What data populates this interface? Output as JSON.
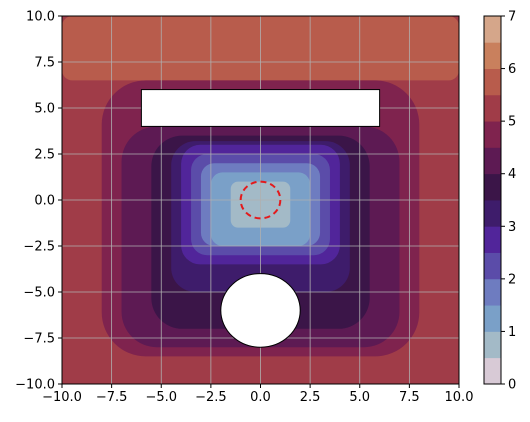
{
  "chart_data": {
    "type": "heatmap",
    "subtype": "filled-contour",
    "title": "",
    "xlabel": "",
    "ylabel": "",
    "xlim": [
      -10,
      10
    ],
    "ylim": [
      -10,
      10
    ],
    "x_ticks": [
      -10.0,
      -7.5,
      -5.0,
      -2.5,
      0.0,
      2.5,
      5.0,
      7.5,
      10.0
    ],
    "x_tick_labels": [
      "−10.0",
      "−7.5",
      "−5.0",
      "−2.5",
      "0.0",
      "2.5",
      "5.0",
      "7.5",
      "10.0"
    ],
    "y_ticks": [
      -10.0,
      -7.5,
      -5.0,
      -2.5,
      0.0,
      2.5,
      5.0,
      7.5,
      10.0
    ],
    "y_tick_labels": [
      "−10.0",
      "−7.5",
      "−5.0",
      "−2.5",
      "0.0",
      "2.5",
      "5.0",
      "7.5",
      "10.0"
    ],
    "grid": true,
    "colorbar": {
      "ticks": [
        0,
        1,
        2,
        3,
        4,
        5,
        6,
        7
      ],
      "tick_labels": [
        "0",
        "1",
        "2",
        "3",
        "4",
        "5",
        "6",
        "7"
      ],
      "levels": [
        0,
        0.5,
        1,
        1.5,
        2,
        2.5,
        3,
        3.5,
        4,
        4.5,
        5,
        5.5,
        6,
        6.5,
        7
      ],
      "colors": [
        "#d8cad6",
        "#a3bac7",
        "#7aa0c8",
        "#6e7cc0",
        "#5b4ca9",
        "#51259a",
        "#3e1c6b",
        "#3b1548",
        "#5d1a53",
        "#7f234e",
        "#a03c48",
        "#b85c4c",
        "#c9805d",
        "#d5a68a"
      ]
    },
    "field_regions": [
      {
        "level_range": [
          5,
          5.5
        ],
        "x_range": [
          -10,
          10
        ],
        "y_range": [
          -10,
          10
        ]
      },
      {
        "level_range": [
          5.5,
          6
        ],
        "x_range": [
          -10,
          10
        ],
        "y_range": [
          6.5,
          10
        ]
      },
      {
        "level_range": [
          4.5,
          5
        ],
        "x_range": [
          -8,
          8
        ],
        "y_range": [
          -8.5,
          6.5
        ]
      },
      {
        "level_range": [
          4,
          4.5
        ],
        "x_range": [
          -7,
          7
        ],
        "y_range": [
          -8,
          4
        ]
      },
      {
        "level_range": [
          3.5,
          4
        ],
        "x_range": [
          -5.5,
          5.5
        ],
        "y_range": [
          -7,
          3.5
        ]
      },
      {
        "level_range": [
          3,
          3.5
        ],
        "x_range": [
          -4.5,
          4.5
        ],
        "y_range": [
          -5,
          3.2
        ]
      },
      {
        "level_range": [
          2.5,
          3
        ],
        "x_range": [
          -4,
          4
        ],
        "y_range": [
          -3.5,
          3
        ]
      },
      {
        "level_range": [
          2,
          2.5
        ],
        "x_range": [
          -3.5,
          3.5
        ],
        "y_range": [
          -3,
          2.5
        ]
      },
      {
        "level_range": [
          1.5,
          2
        ],
        "x_range": [
          -3,
          3
        ],
        "y_range": [
          -2.5,
          2
        ]
      },
      {
        "level_range": [
          1,
          1.5
        ],
        "x_range": [
          -2.5,
          2.5
        ],
        "y_range": [
          -2.5,
          1.5
        ]
      },
      {
        "level_range": [
          0.5,
          1
        ],
        "x_range": [
          -1.5,
          1.5
        ],
        "y_range": [
          -1.5,
          1
        ]
      }
    ],
    "obstacles": [
      {
        "shape": "rectangle",
        "x_range": [
          -6,
          6
        ],
        "y_range": [
          4,
          6
        ],
        "fill": "#ffffff",
        "edge": "#000000"
      },
      {
        "shape": "circle",
        "center": [
          0,
          -6
        ],
        "radius": 2,
        "fill": "#ffffff",
        "edge": "#000000"
      }
    ],
    "target": {
      "shape": "circle",
      "center": [
        0,
        0
      ],
      "radius": 1,
      "style": "dashed",
      "color": "#e31a1c"
    }
  }
}
